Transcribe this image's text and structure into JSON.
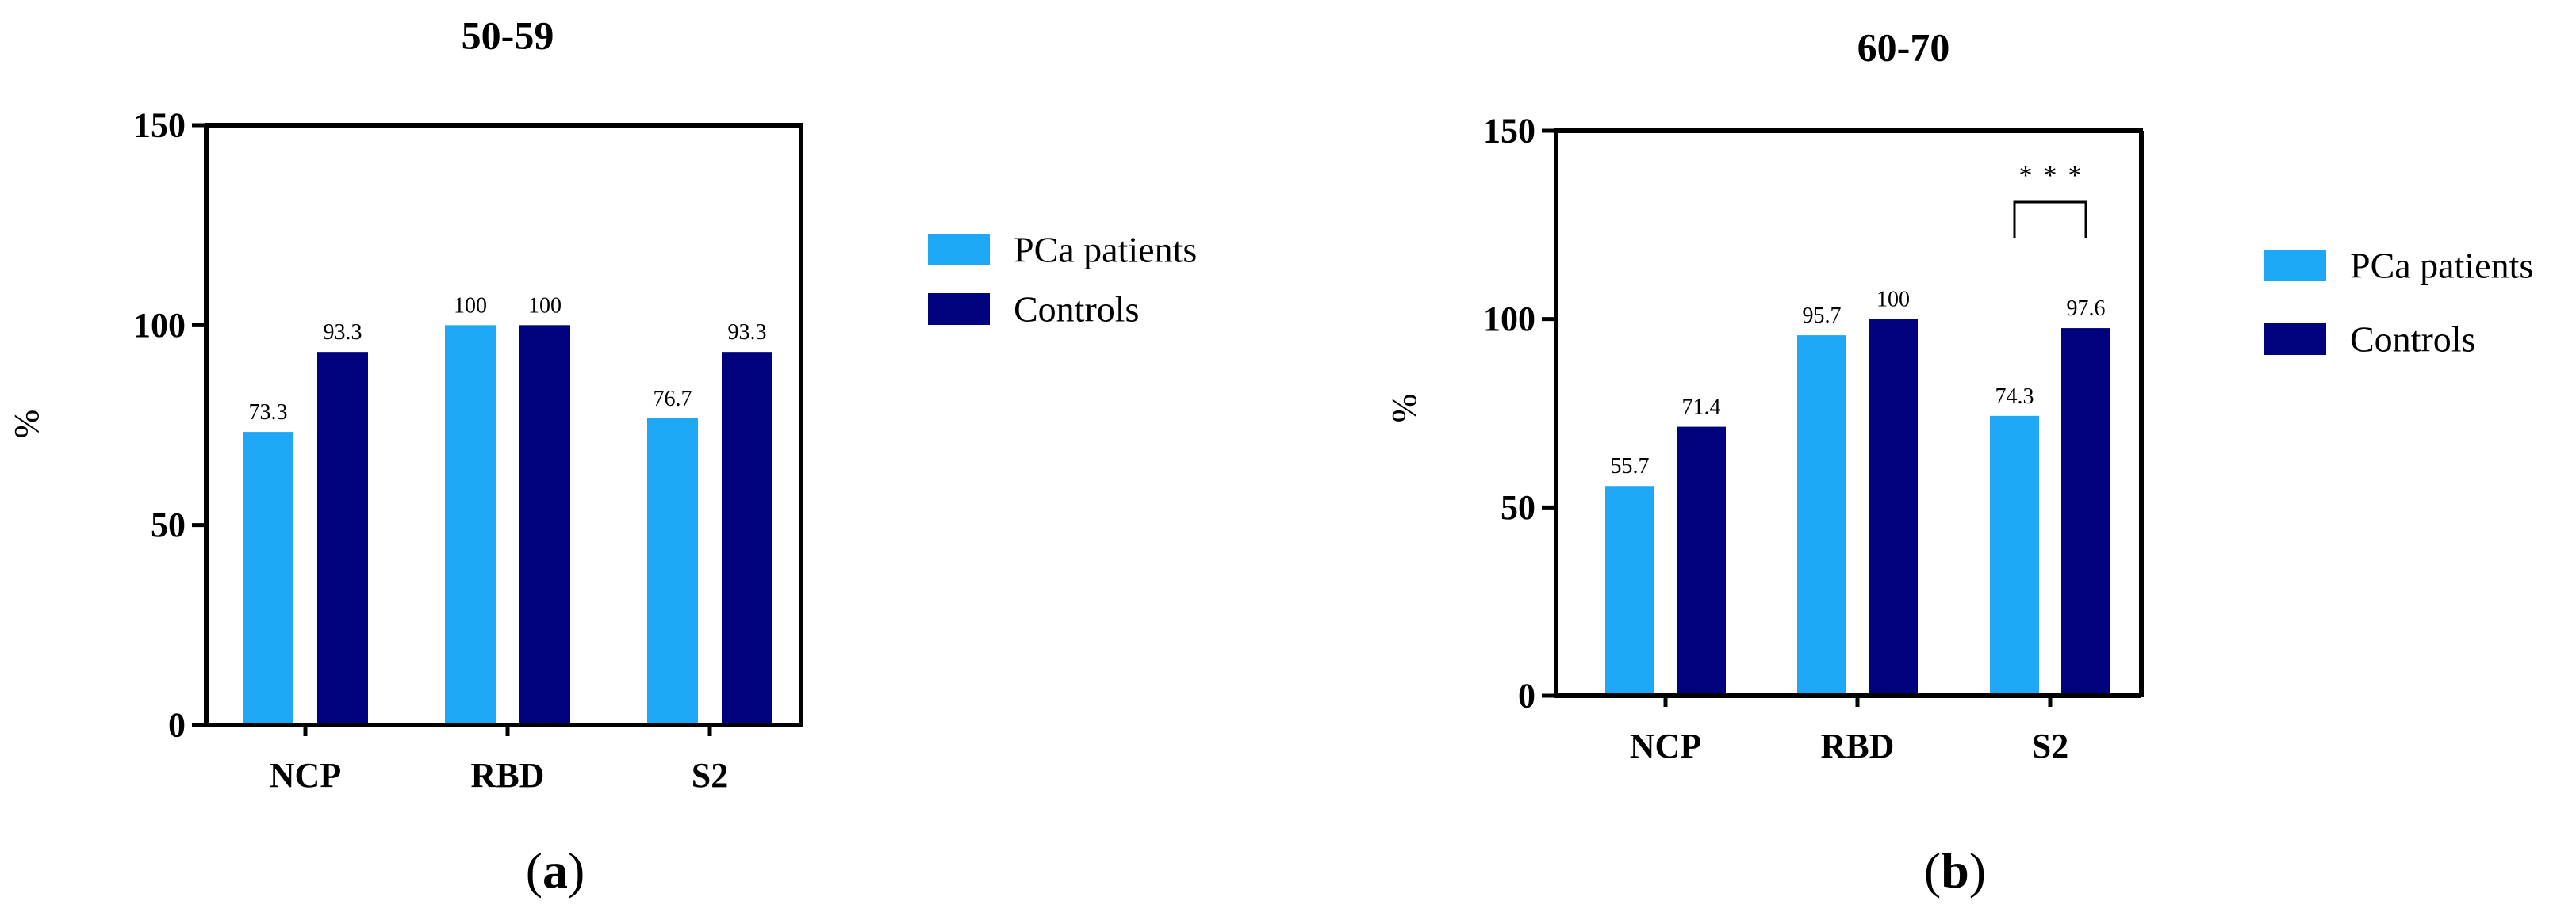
{
  "chart_data": [
    {
      "type": "bar",
      "title": "50-59",
      "panel_label_open": "(",
      "panel_label_letter": "a",
      "panel_label_close": ")",
      "ylabel": "%",
      "xlabel": "",
      "ylim": [
        0,
        150
      ],
      "yticks": [
        "0",
        "50",
        "100",
        "150"
      ],
      "categories": [
        "NCP",
        "RBD",
        "S2"
      ],
      "series": [
        {
          "name": "PCa patients",
          "color": "#1ea7f5",
          "values": [
            73.3,
            100,
            76.7
          ],
          "labels": [
            "73.3",
            "100",
            "76.7"
          ]
        },
        {
          "name": "Controls",
          "color": "#00027d",
          "values": [
            93.3,
            100,
            93.3
          ],
          "labels": [
            "93.3",
            "100",
            "93.3"
          ]
        }
      ],
      "legend_position": "right",
      "significance": null
    },
    {
      "type": "bar",
      "title": "60-70",
      "panel_label_open": "(",
      "panel_label_letter": "b",
      "panel_label_close": ")",
      "ylabel": "%",
      "xlabel": "",
      "ylim": [
        0,
        150
      ],
      "yticks": [
        "0",
        "50",
        "100",
        "150"
      ],
      "categories": [
        "NCP",
        "RBD",
        "S2"
      ],
      "series": [
        {
          "name": "PCa patients",
          "color": "#1ea7f5",
          "values": [
            55.7,
            95.7,
            74.3
          ],
          "labels": [
            "55.7",
            "95.7",
            "74.3"
          ]
        },
        {
          "name": "Controls",
          "color": "#00027d",
          "values": [
            71.4,
            100,
            97.6
          ],
          "labels": [
            "71.4",
            "100",
            "97.6"
          ]
        }
      ],
      "legend_position": "right",
      "significance": {
        "category_index": 2,
        "text": "***"
      }
    }
  ]
}
